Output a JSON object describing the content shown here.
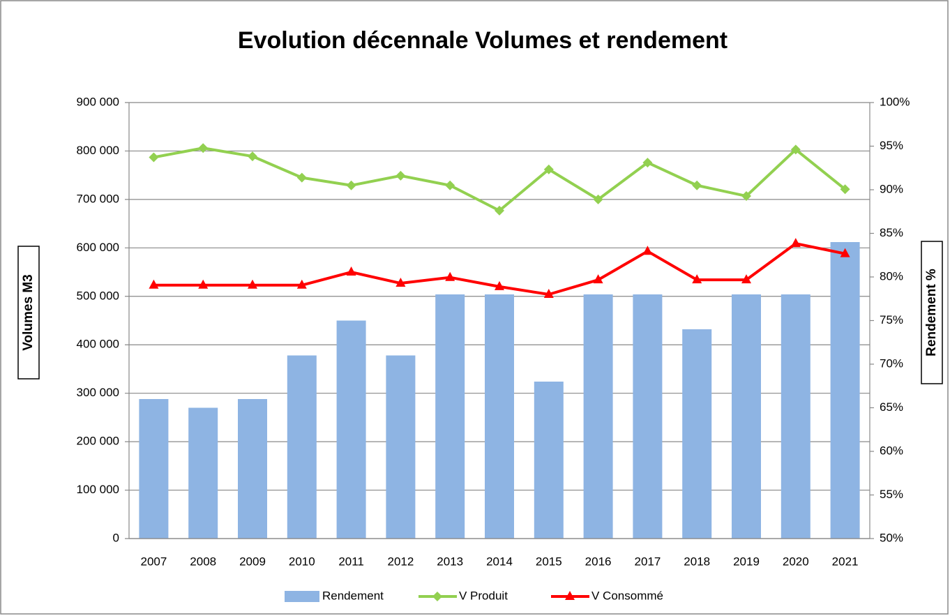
{
  "chart_data": {
    "type": "bar_line",
    "title": "Evolution décennale Volumes et rendement",
    "y_label": "Volumes M3",
    "y2_label": "Rendement %",
    "categories": [
      "2007",
      "2008",
      "2009",
      "2010",
      "2011",
      "2012",
      "2013",
      "2014",
      "2015",
      "2016",
      "2017",
      "2018",
      "2019",
      "2020",
      "2021"
    ],
    "series": [
      {
        "name": "Rendement",
        "type": "bar",
        "axis": "y2",
        "color": "#8eb4e3",
        "values": [
          66,
          65,
          66,
          71,
          75,
          71,
          78,
          78,
          68,
          78,
          78,
          74,
          78,
          78,
          84
        ]
      },
      {
        "name": "V Produit",
        "type": "line",
        "marker": "diamond",
        "color": "#92d050",
        "values": [
          787000,
          806000,
          789000,
          745000,
          729000,
          749000,
          729000,
          677000,
          762000,
          700000,
          776000,
          729000,
          707000,
          803000,
          721000
        ]
      },
      {
        "name": "V Consommé",
        "type": "line",
        "marker": "triangle",
        "color": "#ff0000",
        "values": [
          523000,
          523000,
          523000,
          523000,
          550000,
          527000,
          539000,
          520000,
          504000,
          534000,
          593000,
          534000,
          534000,
          609000,
          588000
        ]
      }
    ],
    "ylim": [
      0,
      900000
    ],
    "yticks": [
      0,
      {
        "value": 100000,
        "label": "100 000"
      },
      {
        "value": 200000,
        "label": "200 000"
      },
      {
        "value": 300000,
        "label": "300 000"
      },
      {
        "value": 400000,
        "label": "400 000"
      },
      {
        "value": 500000,
        "label": "500 000"
      },
      {
        "value": 600000,
        "label": "600 000"
      },
      {
        "value": 700000,
        "label": "700 000"
      },
      {
        "value": 800000,
        "label": "800 000"
      },
      {
        "value": 900000,
        "label": "900 000"
      }
    ],
    "y2lim": [
      50,
      100
    ],
    "y2ticks": [
      {
        "value": 50,
        "label": "50%"
      },
      {
        "value": 55,
        "label": "55%"
      },
      {
        "value": 60,
        "label": "60%"
      },
      {
        "value": 65,
        "label": "65%"
      },
      {
        "value": 70,
        "label": "70%"
      },
      {
        "value": 75,
        "label": "75%"
      },
      {
        "value": 80,
        "label": "80%"
      },
      {
        "value": 85,
        "label": "85%"
      },
      {
        "value": 90,
        "label": "90%"
      },
      {
        "value": 95,
        "label": "95%"
      },
      {
        "value": 100,
        "label": "100%"
      }
    ],
    "grid": true,
    "legend": "bottom"
  }
}
